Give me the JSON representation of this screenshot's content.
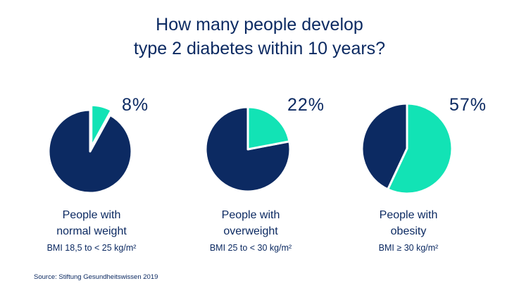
{
  "title": {
    "line1": "How many people develop",
    "line2": "type 2 diabetes within 10 years?"
  },
  "colors": {
    "dark": "#0c2a62",
    "accent": "#12e3b5",
    "text": "#0c2a62"
  },
  "chart_data": {
    "type": "pie",
    "title": "How many people develop type 2 diabetes within 10 years?",
    "pies": [
      {
        "value": 8,
        "value_label": "8%",
        "label_line1": "People with",
        "label_line2": "normal weight",
        "bmi": "BMI 18,5 to < 25 kg/m²"
      },
      {
        "value": 22,
        "value_label": "22%",
        "label_line1": "People with",
        "label_line2": "overweight",
        "bmi": "BMI 25 to < 30 kg/m²"
      },
      {
        "value": 57,
        "value_label": "57%",
        "label_line1": "People with",
        "label_line2": "obesity",
        "bmi": "BMI ≥ 30 kg/m²"
      }
    ]
  },
  "source": "Source: Stiftung Gesundheitswissen 2019"
}
